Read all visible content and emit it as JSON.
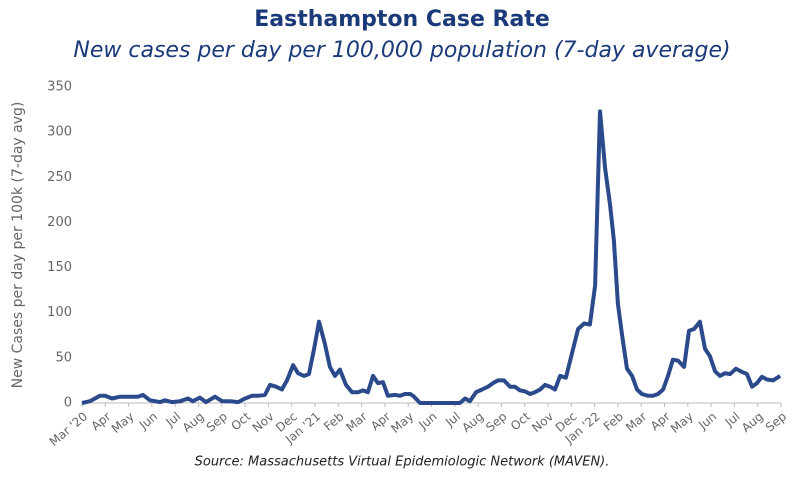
{
  "chart_data": {
    "type": "line",
    "title": "Easthampton Case Rate",
    "subtitle": "New cases per day per 100,000 population (7-day average)",
    "y_label": "New Cases per day per 100k (7-day avg)",
    "source": "Source: Massachusetts Virtual Epidemiologic Network (MAVEN).",
    "xlim": [
      0,
      30
    ],
    "xticks": [
      {
        "value": 0,
        "label": "Mar '20"
      },
      {
        "value": 1,
        "label": "Apr"
      },
      {
        "value": 2,
        "label": "May"
      },
      {
        "value": 3,
        "label": "Jun"
      },
      {
        "value": 4,
        "label": "Jul"
      },
      {
        "value": 5,
        "label": "Aug"
      },
      {
        "value": 6,
        "label": "Sep"
      },
      {
        "value": 7,
        "label": "Oct"
      },
      {
        "value": 8,
        "label": "Nov"
      },
      {
        "value": 9,
        "label": "Dec"
      },
      {
        "value": 10,
        "label": "Jan '21"
      },
      {
        "value": 11,
        "label": "Feb"
      },
      {
        "value": 12,
        "label": "Mar"
      },
      {
        "value": 13,
        "label": "Apr"
      },
      {
        "value": 14,
        "label": "May"
      },
      {
        "value": 15,
        "label": "Jun"
      },
      {
        "value": 16,
        "label": "Jul"
      },
      {
        "value": 17,
        "label": "Aug"
      },
      {
        "value": 18,
        "label": "Sep"
      },
      {
        "value": 19,
        "label": "Oct"
      },
      {
        "value": 20,
        "label": "Nov"
      },
      {
        "value": 21,
        "label": "Dec"
      },
      {
        "value": 22,
        "label": "Jan '22"
      },
      {
        "value": 23,
        "label": "Feb"
      },
      {
        "value": 24,
        "label": "Mar"
      },
      {
        "value": 25,
        "label": "Apr"
      },
      {
        "value": 26,
        "label": "May"
      },
      {
        "value": 27,
        "label": "Jun"
      },
      {
        "value": 28,
        "label": "Jul"
      },
      {
        "value": 29,
        "label": "Aug"
      },
      {
        "value": 30,
        "label": "Sep"
      }
    ],
    "ylim": [
      0,
      350
    ],
    "yticks": [
      0,
      50,
      100,
      150,
      200,
      250,
      300,
      350
    ],
    "grid": false,
    "series": [
      {
        "name": "Case rate",
        "color": "#2b4a8b",
        "x": [
          0,
          0.34,
          0.77,
          0.99,
          1.29,
          1.63,
          2.06,
          2.4,
          2.62,
          2.92,
          3.35,
          3.56,
          3.86,
          4.21,
          4.55,
          4.76,
          5.06,
          5.32,
          5.71,
          6.01,
          6.35,
          6.7,
          7.0,
          7.3,
          7.55,
          7.85,
          8.07,
          8.33,
          8.58,
          8.8,
          9.06,
          9.27,
          9.53,
          9.74,
          9.96,
          10.17,
          10.43,
          10.64,
          10.86,
          11.07,
          11.33,
          11.59,
          11.85,
          12.06,
          12.27,
          12.49,
          12.7,
          12.92,
          13.13,
          13.43,
          13.65,
          13.86,
          14.08,
          14.21,
          14.51,
          16.22,
          16.44,
          16.65,
          16.91,
          17.17,
          17.42,
          17.64,
          17.85,
          18.11,
          18.37,
          18.58,
          18.8,
          19.01,
          19.23,
          19.44,
          19.66,
          19.87,
          20.09,
          20.3,
          20.52,
          20.77,
          21.03,
          21.29,
          21.55,
          21.8,
          22.02,
          22.23,
          22.45,
          22.66,
          22.83,
          23.0,
          23.18,
          23.39,
          23.61,
          23.82,
          24.03,
          24.29,
          24.51,
          24.72,
          24.94,
          25.15,
          25.36,
          25.58,
          25.84,
          26.05,
          26.27,
          26.52,
          26.74,
          26.95,
          27.17,
          27.38,
          27.6,
          27.81,
          28.07,
          28.28,
          28.54,
          28.76,
          28.97,
          29.18,
          29.4,
          29.66,
          29.96
        ],
        "values": [
          0,
          2,
          8,
          8,
          5,
          7,
          7,
          7,
          9,
          3,
          1,
          3,
          1,
          2,
          5,
          2,
          6,
          1,
          7,
          2,
          2,
          1,
          5,
          8,
          8,
          9,
          20,
          18,
          15,
          25,
          42,
          33,
          30,
          32,
          60,
          90,
          65,
          40,
          30,
          37,
          20,
          12,
          12,
          14,
          12,
          30,
          22,
          23,
          8,
          9,
          8,
          10,
          10,
          8,
          0,
          0,
          5,
          2,
          12,
          15,
          18,
          22,
          25,
          25,
          18,
          18,
          14,
          13,
          10,
          12,
          15,
          20,
          18,
          15,
          30,
          28,
          55,
          82,
          88,
          87,
          130,
          323,
          260,
          220,
          180,
          110,
          75,
          38,
          30,
          15,
          10,
          8,
          8,
          10,
          15,
          30,
          48,
          47,
          40,
          80,
          82,
          90,
          60,
          52,
          35,
          30,
          33,
          32,
          38,
          35,
          32,
          18,
          22,
          29,
          26,
          25,
          30
        ]
      }
    ]
  }
}
